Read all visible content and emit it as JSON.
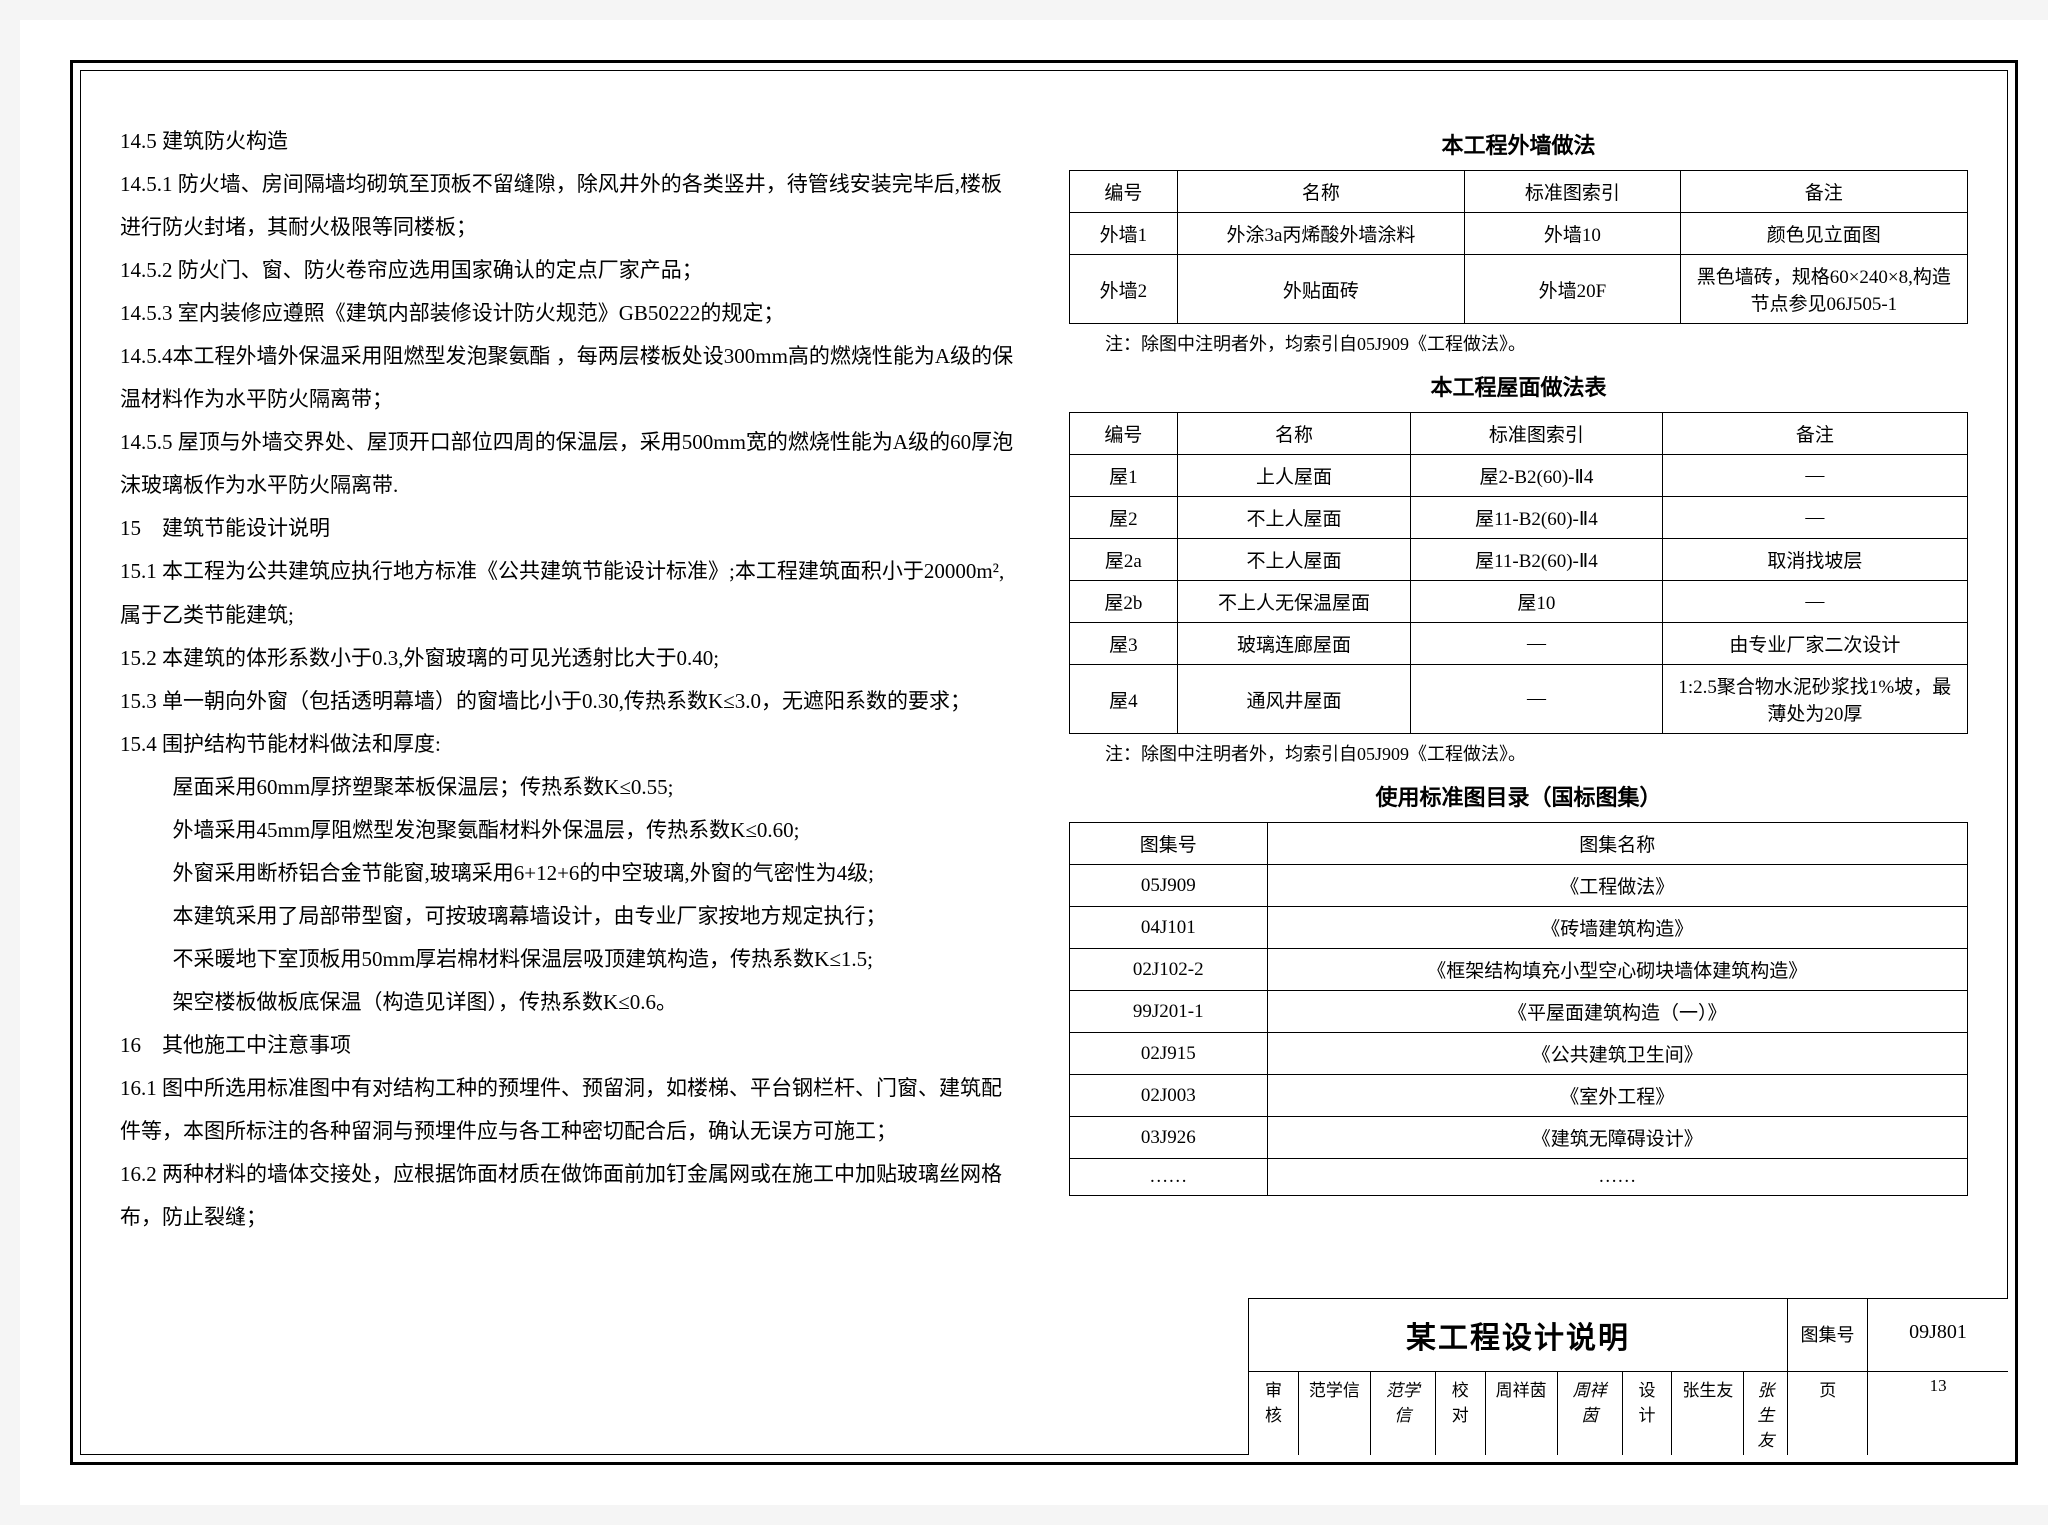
{
  "left": {
    "p1": "14.5 建筑防火构造",
    "p2": "14.5.1 防火墙、房间隔墙均砌筑至顶板不留缝隙，除风井外的各类竖井，待管线安装完毕后,楼板进行防火封堵，其耐火极限等同楼板；",
    "p3": "14.5.2 防火门、窗、防火卷帘应选用国家确认的定点厂家产品；",
    "p4": "14.5.3 室内装修应遵照《建筑内部装修设计防火规范》GB50222的规定；",
    "p5": "14.5.4本工程外墙外保温采用阻燃型发泡聚氨酯 ，每两层楼板处设300mm高的燃烧性能为A级的保温材料作为水平防火隔离带；",
    "p6": "14.5.5 屋顶与外墙交界处、屋顶开口部位四周的保温层，采用500mm宽的燃烧性能为A级的60厚泡沫玻璃板作为水平防火隔离带.",
    "p7": "15　建筑节能设计说明",
    "p8": "15.1 本工程为公共建筑应执行地方标准《公共建筑节能设计标准》;本工程建筑面积小于20000m²,属于乙类节能建筑;",
    "p9": "15.2 本建筑的体形系数小于0.3,外窗玻璃的可见光透射比大于0.40;",
    "p10": "15.3 单一朝向外窗（包括透明幕墙）的窗墙比小于0.30,传热系数K≤3.0，无遮阳系数的要求；",
    "p11": "15.4 围护结构节能材料做法和厚度:",
    "p12": "屋面采用60mm厚挤塑聚苯板保温层；传热系数K≤0.55;",
    "p13": "外墙采用45mm厚阻燃型发泡聚氨酯材料外保温层，传热系数K≤0.60;",
    "p14": "外窗采用断桥铝合金节能窗,玻璃采用6+12+6的中空玻璃,外窗的气密性为4级;",
    "p15": "本建筑采用了局部带型窗，可按玻璃幕墙设计，由专业厂家按地方规定执行；",
    "p16": "不采暖地下室顶板用50mm厚岩棉材料保温层吸顶建筑构造，传热系数K≤1.5;",
    "p17": "架空楼板做板底保温（构造见详图），传热系数K≤0.6。",
    "p18": "16　其他施工中注意事项",
    "p19": "16.1 图中所选用标准图中有对结构工种的预埋件、预留洞，如楼梯、平台钢栏杆、门窗、建筑配件等，本图所标注的各种留洞与预埋件应与各工种密切配合后，确认无误方可施工；",
    "p20": "16.2 两种材料的墙体交接处，应根据饰面材质在做饰面前加钉金属网或在施工中加贴玻璃丝网格布，防止裂缝；"
  },
  "table1": {
    "title": "本工程外墙做法",
    "headers": [
      "编号",
      "名称",
      "标准图索引",
      "备注"
    ],
    "rows": [
      [
        "外墙1",
        "外涂3a丙烯酸外墙涂料",
        "外墙10",
        "颜色见立面图"
      ],
      [
        "外墙2",
        "外贴面砖",
        "外墙20F",
        "黑色墙砖，规格60×240×8,构造节点参见06J505-1"
      ]
    ],
    "note": "注：除图中注明者外，均索引自05J909《工程做法》。"
  },
  "table2": {
    "title": "本工程屋面做法表",
    "headers": [
      "编号",
      "名称",
      "标准图索引",
      "备注"
    ],
    "rows": [
      [
        "屋1",
        "上人屋面",
        "屋2-B2(60)-Ⅱ4",
        "—"
      ],
      [
        "屋2",
        "不上人屋面",
        "屋11-B2(60)-Ⅱ4",
        "—"
      ],
      [
        "屋2a",
        "不上人屋面",
        "屋11-B2(60)-Ⅱ4",
        "取消找坡层"
      ],
      [
        "屋2b",
        "不上人无保温屋面",
        "屋10",
        "—"
      ],
      [
        "屋3",
        "玻璃连廊屋面",
        "—",
        "由专业厂家二次设计"
      ],
      [
        "屋4",
        "通风井屋面",
        "—",
        "1:2.5聚合物水泥砂浆找1%坡，最薄处为20厚"
      ]
    ],
    "note": "注：除图中注明者外，均索引自05J909《工程做法》。"
  },
  "table3": {
    "title": "使用标准图目录（国标图集）",
    "headers": [
      "图集号",
      "图集名称"
    ],
    "rows": [
      [
        "05J909",
        "《工程做法》"
      ],
      [
        "04J101",
        "《砖墙建筑构造》"
      ],
      [
        "02J102-2",
        "《框架结构填充小型空心砌块墙体建筑构造》"
      ],
      [
        "99J201-1",
        "《平屋面建筑构造（一）》"
      ],
      [
        "02J915",
        "《公共建筑卫生间》"
      ],
      [
        "02J003",
        "《室外工程》"
      ],
      [
        "03J926",
        "《建筑无障碍设计》"
      ],
      [
        "……",
        "……"
      ]
    ]
  },
  "titleblock": {
    "title": "某工程设计说明",
    "code_label": "图集号",
    "code_val": "09J801",
    "l1": "审核",
    "v1": "范学信",
    "s1": "范学信",
    "l2": "校对",
    "v2": "周祥茵",
    "s2": "周祥茵",
    "l3": "设计",
    "v3": "张生友",
    "s3": "张生友",
    "l4": "页",
    "v4": "13"
  }
}
